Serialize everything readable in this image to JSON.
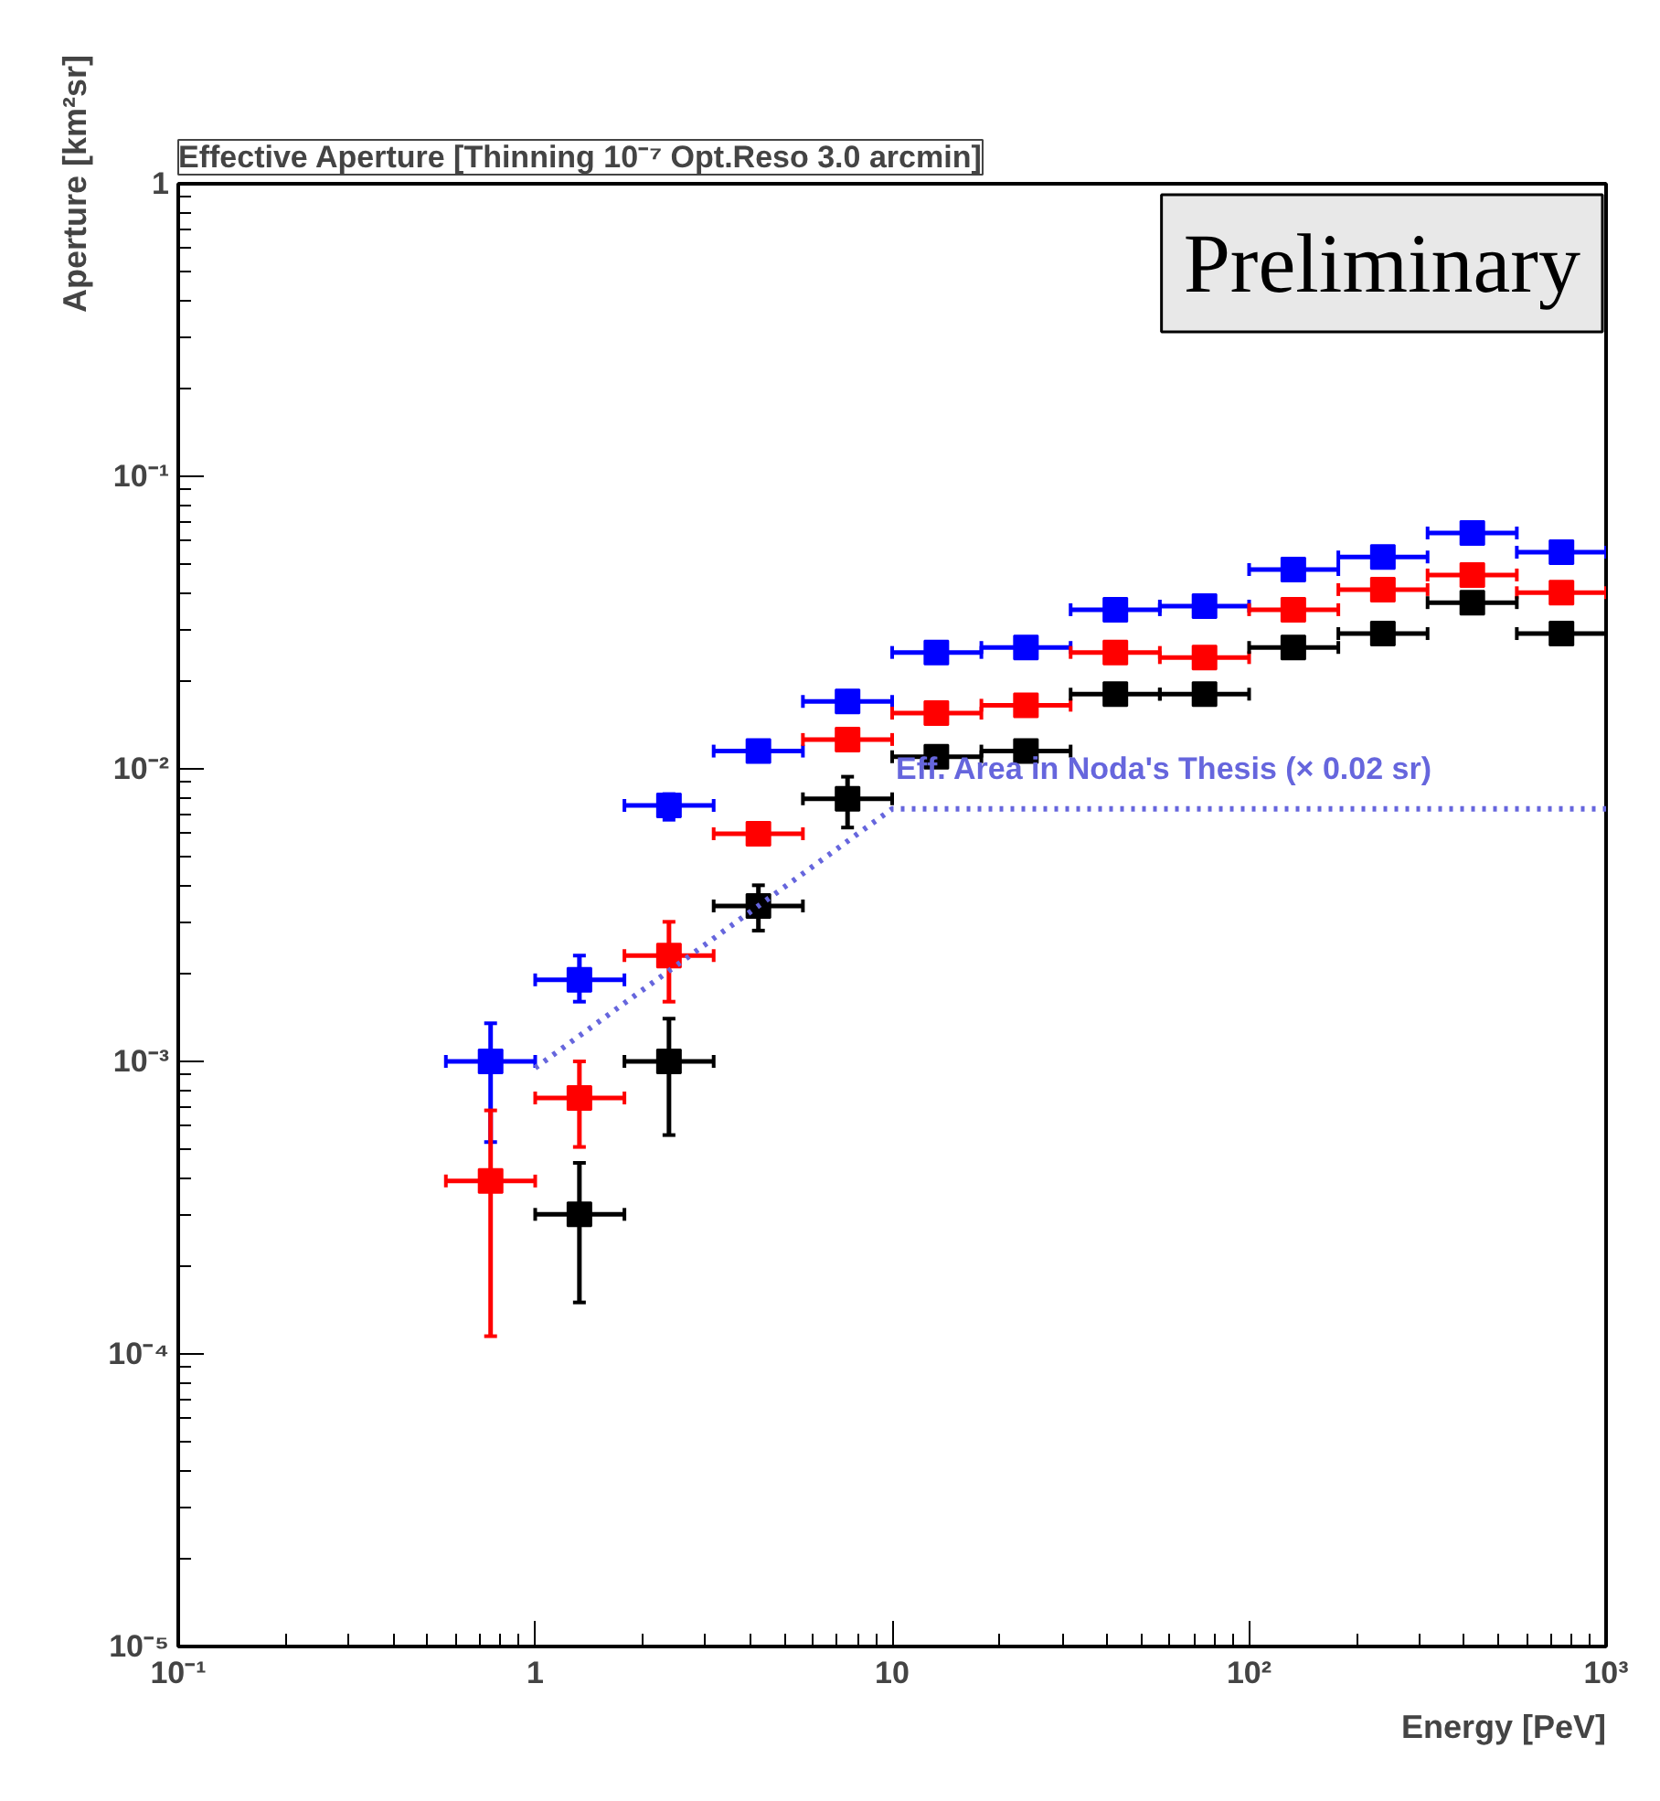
{
  "chart_data": {
    "type": "scatter",
    "title": "Effective Aperture [Thinning 10⁻⁷ Opt.Reso 3.0 arcmin]",
    "xlabel": "Energy [PeV]",
    "ylabel": "Aperture [km²sr]",
    "log": "xy",
    "grid": false,
    "marker": "square",
    "xlim": [
      0.1,
      1000
    ],
    "ylim": [
      1e-05,
      1
    ],
    "xticks": [
      {
        "value": 0.1,
        "label": "10⁻¹"
      },
      1,
      10,
      {
        "value": 100,
        "label": "10²"
      },
      {
        "value": 1000,
        "label": "10³"
      }
    ],
    "yticks": [
      {
        "value": 1e-05,
        "label": "10⁻⁵"
      },
      {
        "value": 0.0001,
        "label": "10⁻⁴"
      },
      {
        "value": 0.001,
        "label": "10⁻³"
      },
      {
        "value": 0.01,
        "label": "10⁻²"
      },
      {
        "value": 0.1,
        "label": "10⁻¹"
      },
      1
    ],
    "annotations": [
      "Preliminary",
      {
        "text": "Eff. Area in Noda's Thesis (× 0.02 sr)",
        "x": 10,
        "y": 0.0085
      }
    ],
    "series": [
      {
        "color": "#0000ff",
        "x": [
          0.75,
          1.33,
          2.37,
          4.22,
          7.5,
          13.3,
          23.7,
          42.2,
          75,
          133,
          237,
          422,
          750
        ],
        "values": [
          0.001,
          0.0019,
          0.0075,
          0.0115,
          0.017,
          0.025,
          0.026,
          0.035,
          0.036,
          0.048,
          0.053,
          0.064,
          0.055
        ],
        "errors": [
          [
            0.00053,
            0.00135
          ],
          [
            0.0016,
            0.0023
          ],
          [
            0.0067,
            0.0082
          ],
          null,
          null,
          null,
          null,
          null,
          null,
          null,
          null,
          null,
          null
        ],
        "xerrors": [
          [
            0.562,
            1
          ],
          [
            1,
            1.778
          ],
          [
            1.778,
            3.162
          ],
          [
            3.162,
            5.623
          ],
          [
            5.623,
            10
          ],
          [
            10,
            17.78
          ],
          [
            17.78,
            31.62
          ],
          [
            31.62,
            56.23
          ],
          [
            56.23,
            100
          ],
          [
            100,
            177.8
          ],
          [
            177.8,
            316.2
          ],
          [
            316.2,
            562.3
          ],
          [
            562.3,
            1000
          ]
        ]
      },
      {
        "color": "#ff0000",
        "x": [
          0.75,
          1.33,
          2.37,
          4.22,
          7.5,
          13.3,
          23.7,
          42.2,
          75,
          133,
          237,
          422,
          750
        ],
        "values": [
          0.00039,
          0.00075,
          0.0023,
          0.006,
          0.0126,
          0.0155,
          0.0165,
          0.025,
          0.024,
          0.035,
          0.041,
          0.046,
          0.04
        ],
        "errors": [
          [
            0.000115,
            0.00068
          ],
          [
            0.00051,
            0.001
          ],
          [
            0.0016,
            0.003
          ],
          null,
          null,
          null,
          null,
          null,
          null,
          null,
          null,
          null,
          null
        ],
        "xerrors": [
          [
            0.562,
            1
          ],
          [
            1,
            1.778
          ],
          [
            1.778,
            3.162
          ],
          [
            3.162,
            5.623
          ],
          [
            5.623,
            10
          ],
          [
            10,
            17.78
          ],
          [
            17.78,
            31.62
          ],
          [
            31.62,
            56.23
          ],
          [
            56.23,
            100
          ],
          [
            100,
            177.8
          ],
          [
            177.8,
            316.2
          ],
          [
            316.2,
            562.3
          ],
          [
            562.3,
            1000
          ]
        ]
      },
      {
        "color": "#000000",
        "x": [
          1.33,
          2.37,
          4.22,
          7.5,
          13.3,
          23.7,
          42.2,
          75,
          133,
          237,
          422,
          750
        ],
        "values": [
          0.0003,
          0.001,
          0.0034,
          0.0079,
          0.011,
          0.0115,
          0.018,
          0.018,
          0.026,
          0.029,
          0.037,
          0.029
        ],
        "errors": [
          [
            0.00015,
            0.00045
          ],
          [
            0.00056,
            0.0014
          ],
          [
            0.0028,
            0.004
          ],
          [
            0.0063,
            0.0094
          ],
          null,
          null,
          null,
          null,
          null,
          null,
          null,
          null
        ],
        "xerrors": [
          [
            1,
            1.778
          ],
          [
            1.778,
            3.162
          ],
          [
            3.162,
            5.623
          ],
          [
            5.623,
            10
          ],
          [
            10,
            17.78
          ],
          [
            17.78,
            31.62
          ],
          [
            31.62,
            56.23
          ],
          [
            56.23,
            100
          ],
          [
            100,
            177.8
          ],
          [
            177.8,
            316.2
          ],
          [
            316.2,
            562.3
          ],
          [
            562.3,
            1000
          ]
        ]
      },
      {
        "type": "line",
        "color": "#6666dd",
        "line_style": "dotted",
        "marker": "none",
        "x": [
          1,
          10,
          1000
        ],
        "values": [
          0.00095,
          0.0073,
          0.0073
        ]
      }
    ]
  }
}
